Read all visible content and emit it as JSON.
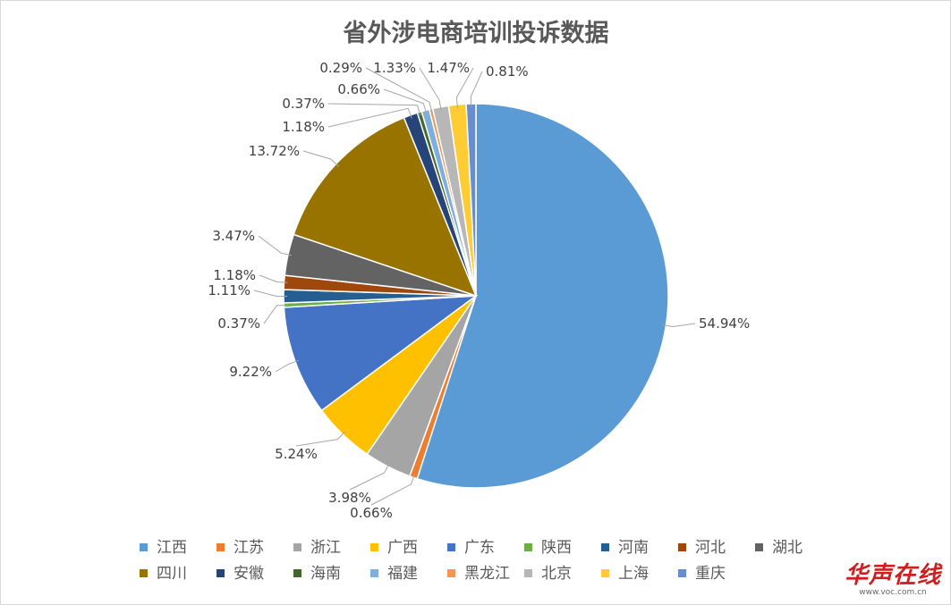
{
  "chart_data": {
    "type": "pie",
    "title": "省外涉电商培训投诉数据",
    "legend_position": "bottom",
    "slices": [
      {
        "label": "江西",
        "value": 54.94,
        "display": "54.94%",
        "color": "#5b9bd5"
      },
      {
        "label": "江苏",
        "value": 0.66,
        "display": "0.66%",
        "color": "#ed7d31"
      },
      {
        "label": "浙江",
        "value": 3.98,
        "display": "3.98%",
        "color": "#a5a5a5"
      },
      {
        "label": "广西",
        "value": 5.24,
        "display": "5.24%",
        "color": "#ffc000"
      },
      {
        "label": "广东",
        "value": 9.22,
        "display": "9.22%",
        "color": "#4472c4"
      },
      {
        "label": "陕西",
        "value": 0.37,
        "display": "0.37%",
        "color": "#70ad47"
      },
      {
        "label": "河南",
        "value": 1.11,
        "display": "1.11%",
        "color": "#255e91"
      },
      {
        "label": "河北",
        "value": 1.18,
        "display": "1.18%",
        "color": "#9e480e"
      },
      {
        "label": "湖北",
        "value": 3.47,
        "display": "3.47%",
        "color": "#636363"
      },
      {
        "label": "四川",
        "value": 13.72,
        "display": "13.72%",
        "color": "#997300"
      },
      {
        "label": "安徽",
        "value": 1.18,
        "display": "1.18%",
        "color": "#264478"
      },
      {
        "label": "海南",
        "value": 0.37,
        "display": "0.37%",
        "color": "#43682b"
      },
      {
        "label": "福建",
        "value": 0.66,
        "display": "0.66%",
        "color": "#7cafdd"
      },
      {
        "label": "黑龙江",
        "value": 0.29,
        "display": "0.29%",
        "color": "#f1975a"
      },
      {
        "label": "北京",
        "value": 1.33,
        "display": "1.33%",
        "color": "#b7b7b7"
      },
      {
        "label": "上海",
        "value": 1.47,
        "display": "1.47%",
        "color": "#ffcd33"
      },
      {
        "label": "重庆",
        "value": 0.81,
        "display": "0.81%",
        "color": "#698ed0"
      }
    ]
  },
  "watermark": {
    "name": "华声在线",
    "site": "www.voc.com.cn"
  }
}
